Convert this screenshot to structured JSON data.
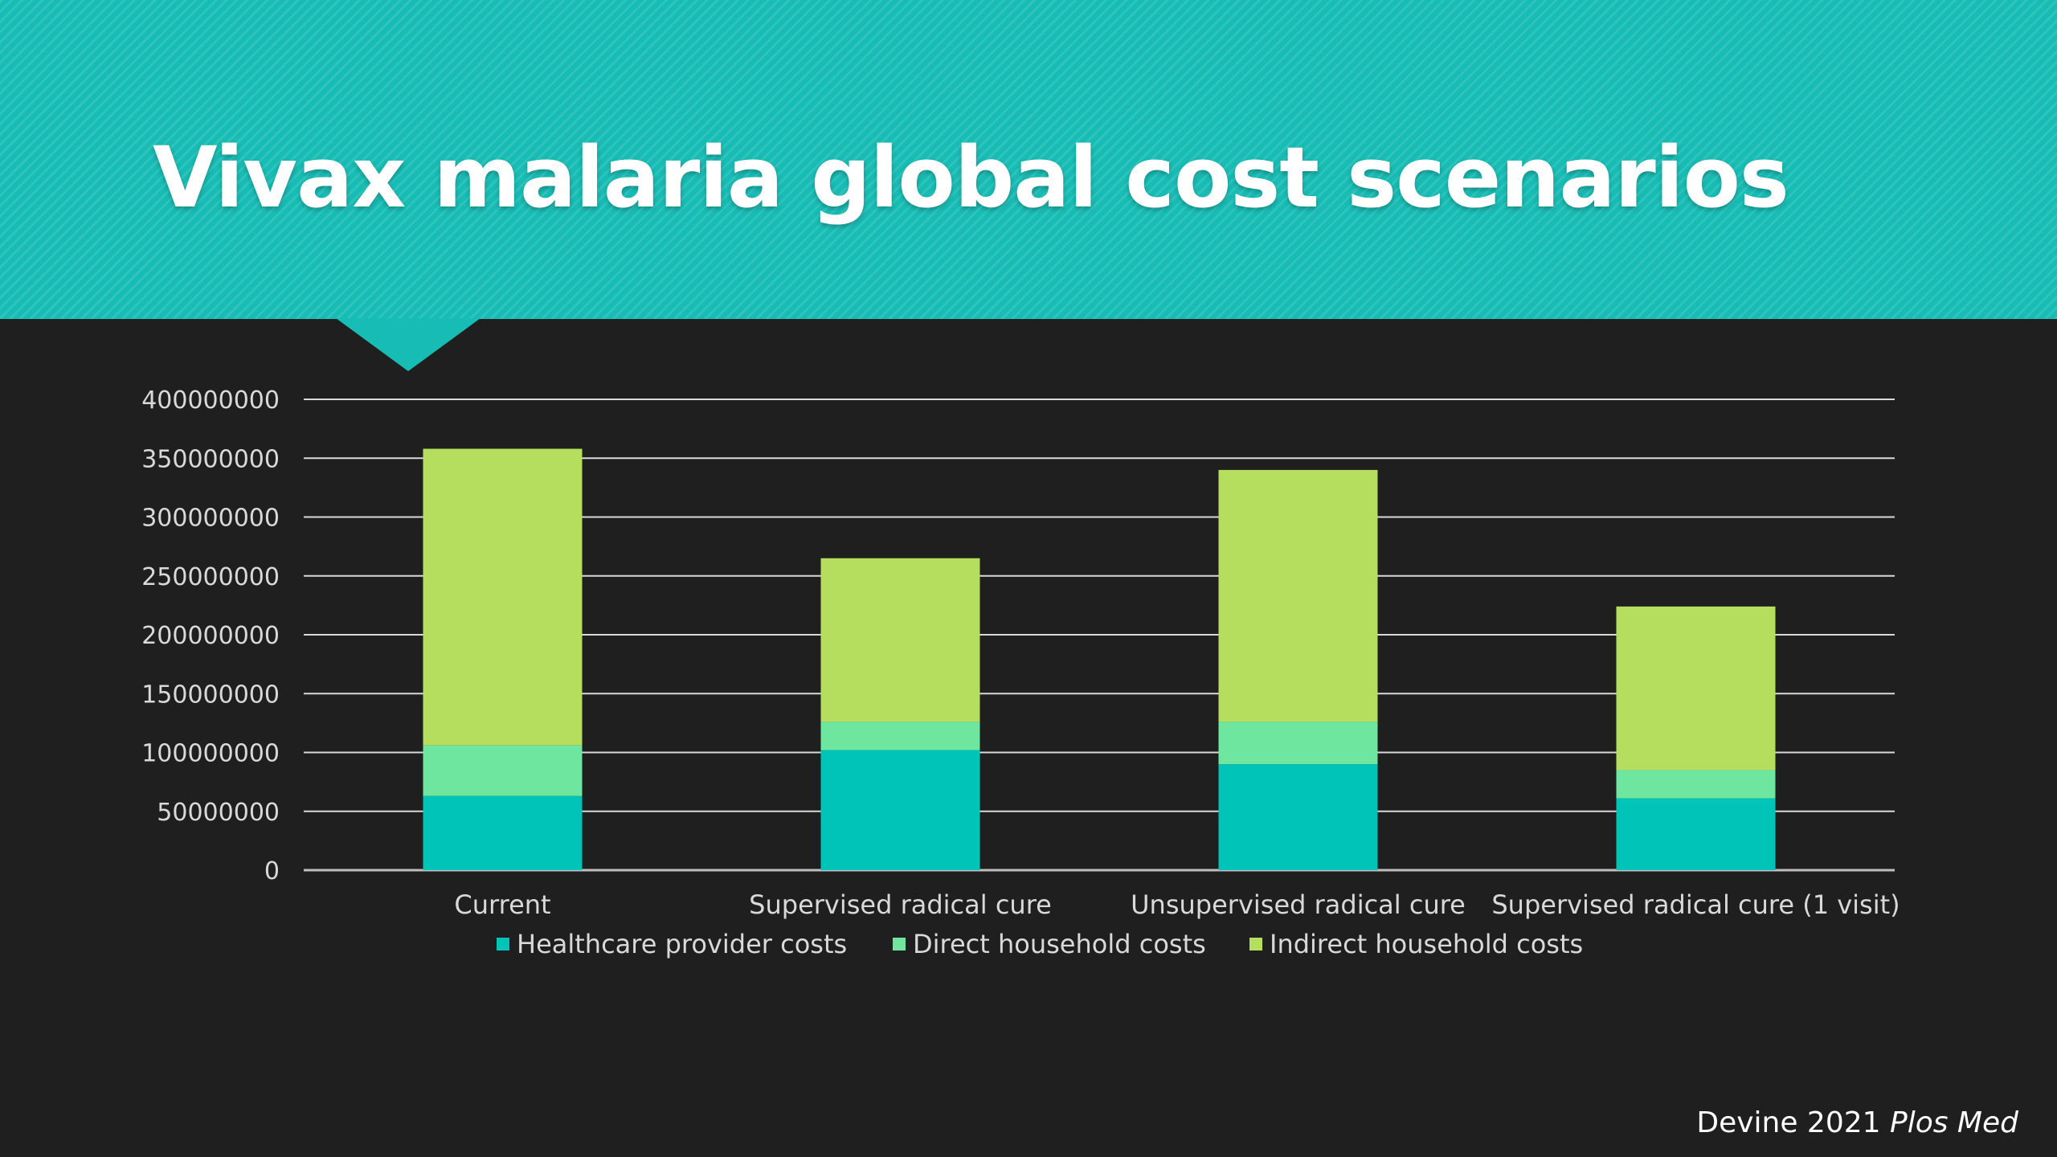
{
  "slide": {
    "title": "Vivax malaria global cost scenarios",
    "citation_author": "Devine 2021 ",
    "citation_journal": "Plos Med"
  },
  "colors": {
    "header": "#17bcb4",
    "background": "#1f1f1f",
    "healthcare": "#00c4b8",
    "direct": "#6ee6a0",
    "indirect": "#b5dd5e"
  },
  "chart_data": {
    "type": "bar",
    "stacked": true,
    "title": "",
    "xlabel": "",
    "ylabel": "",
    "categories": [
      "Current",
      "Supervised radical cure",
      "Unsupervised radical cure",
      "Supervised radical cure (1 visit)"
    ],
    "series": [
      {
        "name": "Healthcare provider costs",
        "color": "#00c4b8",
        "values": [
          63000000,
          102000000,
          90000000,
          61000000
        ]
      },
      {
        "name": "Direct household costs",
        "color": "#6ee6a0",
        "values": [
          43000000,
          24000000,
          36000000,
          24000000
        ]
      },
      {
        "name": "Indirect household costs",
        "color": "#b5dd5e",
        "values": [
          252000000,
          139000000,
          214000000,
          139000000
        ]
      }
    ],
    "ylim": [
      0,
      400000000
    ],
    "yticks": [
      "0",
      "50000000",
      "100000000",
      "150000000",
      "200000000",
      "250000000",
      "300000000",
      "350000000",
      "400000000"
    ],
    "grid": true,
    "legend_position": "bottom"
  }
}
